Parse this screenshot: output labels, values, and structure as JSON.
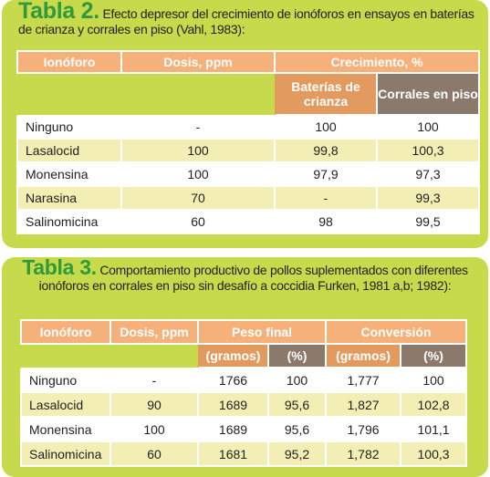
{
  "tabla2": {
    "label": "Tabla 2.",
    "caption": "Efecto depresor del crecimiento de ionóforos en ensayos en baterías de crianza y corrales en piso (Vahl, 1983):",
    "header": {
      "ionoforo": "Ionóforo",
      "dosis": "Dosis, ppm",
      "group": "Crecimiento, %",
      "sub": [
        "Baterías de crianza",
        "Corrales en piso"
      ]
    },
    "rows": [
      [
        "Ninguno",
        "-",
        "100",
        "100"
      ],
      [
        "Lasalocid",
        "100",
        "99,8",
        "100,3"
      ],
      [
        "Monensina",
        "100",
        "97,9",
        "97,3"
      ],
      [
        "Narasina",
        "70",
        "-",
        "99,3"
      ],
      [
        "Salinomicina",
        "60",
        "98",
        "99,5"
      ]
    ]
  },
  "tabla3": {
    "label": "Tabla 3.",
    "caption": "Comportamiento productivo de pollos suplementados con diferentes ionóforos en corrales en piso sin desafío a coccidia Furken, 1981 a,b; 1982):",
    "header": {
      "ionoforo": "Ionóforo",
      "dosis": "Dosis, ppm",
      "peso": "Peso final",
      "conversion": "Conversión",
      "sub": [
        "(gramos)",
        "(%)",
        "(gramos)",
        "(%)"
      ]
    },
    "rows": [
      [
        "Ninguno",
        "-",
        "1766",
        "100",
        "1,777",
        "100"
      ],
      [
        "Lasalocid",
        "90",
        "1689",
        "95,6",
        "1,827",
        "102,8"
      ],
      [
        "Monensina",
        "100",
        "1689",
        "95,6",
        "1,796",
        "101,1"
      ],
      [
        "Salinomicina",
        "60",
        "1681",
        "95,2",
        "1,782",
        "100,3"
      ]
    ]
  }
}
